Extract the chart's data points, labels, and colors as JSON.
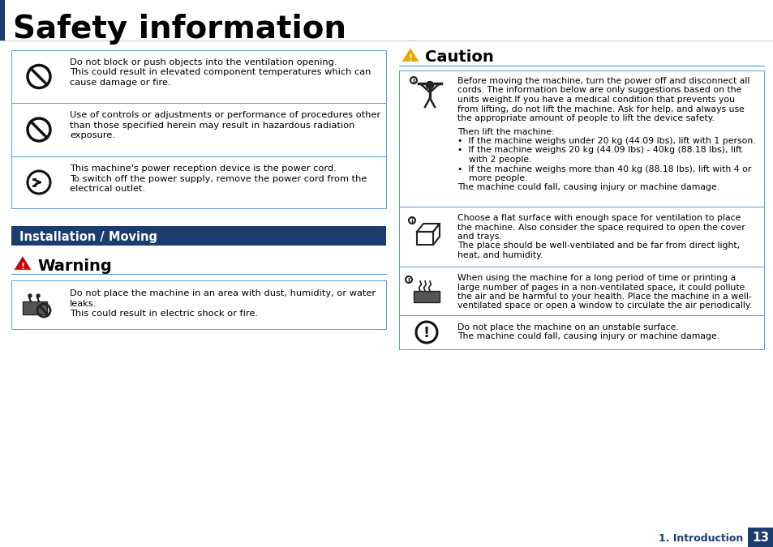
{
  "title": "Safety information",
  "page_bg": "#ffffff",
  "header_bar_color": "#1a3d6e",
  "section_bar_color": "#1a3d6e",
  "section_bar_text": "Installation / Moving",
  "warning_title": "Warning",
  "caution_title": "Caution",
  "warning_triangle_color": "#cc0000",
  "caution_triangle_color": "#e6a800",
  "divider_color": "#5b9bd5",
  "table_border_color": "#5b9bd5",
  "footer_bg": "#1a3d6e",
  "footer_text": "1. Introduction",
  "footer_page": "13",
  "left_table_rows": [
    {
      "icon": "no_sign",
      "line1": "Do not block or push objects into the ventilation opening.",
      "line2": "This could result in elevated component temperatures which can",
      "line3": "cause damage or fire."
    },
    {
      "icon": "no_sign",
      "line1": "Use of controls or adjustments or performance of procedures other",
      "line2": "than those specified herein may result in hazardous radiation",
      "line3": "exposure."
    },
    {
      "icon": "power_plug",
      "line1": "This machine's power reception device is the power cord.",
      "line2": "To switch off the power supply, remove the power cord from the",
      "line3": "electrical outlet."
    }
  ],
  "warning_row": {
    "icon": "water_machine",
    "line1": "Do not place the machine in an area with dust, humidity, or water",
    "line2": "leaks.",
    "line3": "This could result in electric shock or fire."
  },
  "caution_row0_lines": [
    "Before moving the machine, turn the power off and disconnect all",
    "cords. The information below are only suggestions based on the",
    "units weight.If you have a medical condition that prevents you",
    "from lifting, do not lift the machine. Ask for help, and always use",
    "the appropriate amount of people to lift the device safety.",
    "Then lift the machine:",
    "•  If the machine weighs under 20 kg (44.09 lbs), lift with 1 person.",
    "•  If the machine weighs 20 kg (44.09 lbs) - 40kg (88.18 lbs), lift",
    "    with 2 people.",
    "•  If the machine weighs more than 40 kg (88.18 lbs), lift with 4 or",
    "    more people.",
    "The machine could fall, causing injury or machine damage."
  ],
  "caution_row1_lines": [
    "Choose a flat surface with enough space for ventilation to place",
    "the machine. Also consider the space required to open the cover",
    "and trays.",
    "The place should be well-ventilated and be far from direct light,",
    "heat, and humidity."
  ],
  "caution_row2_lines": [
    "When using the machine for a long period of time or printing a",
    "large number of pages in a non-ventilated space, it could pollute",
    "the air and be harmful to your health. Place the machine in a well-",
    "ventilated space or open a window to circulate the air periodically."
  ],
  "caution_row3_lines": [
    "Do not place the machine on an unstable surface.",
    "The machine could fall, causing injury or machine damage."
  ]
}
